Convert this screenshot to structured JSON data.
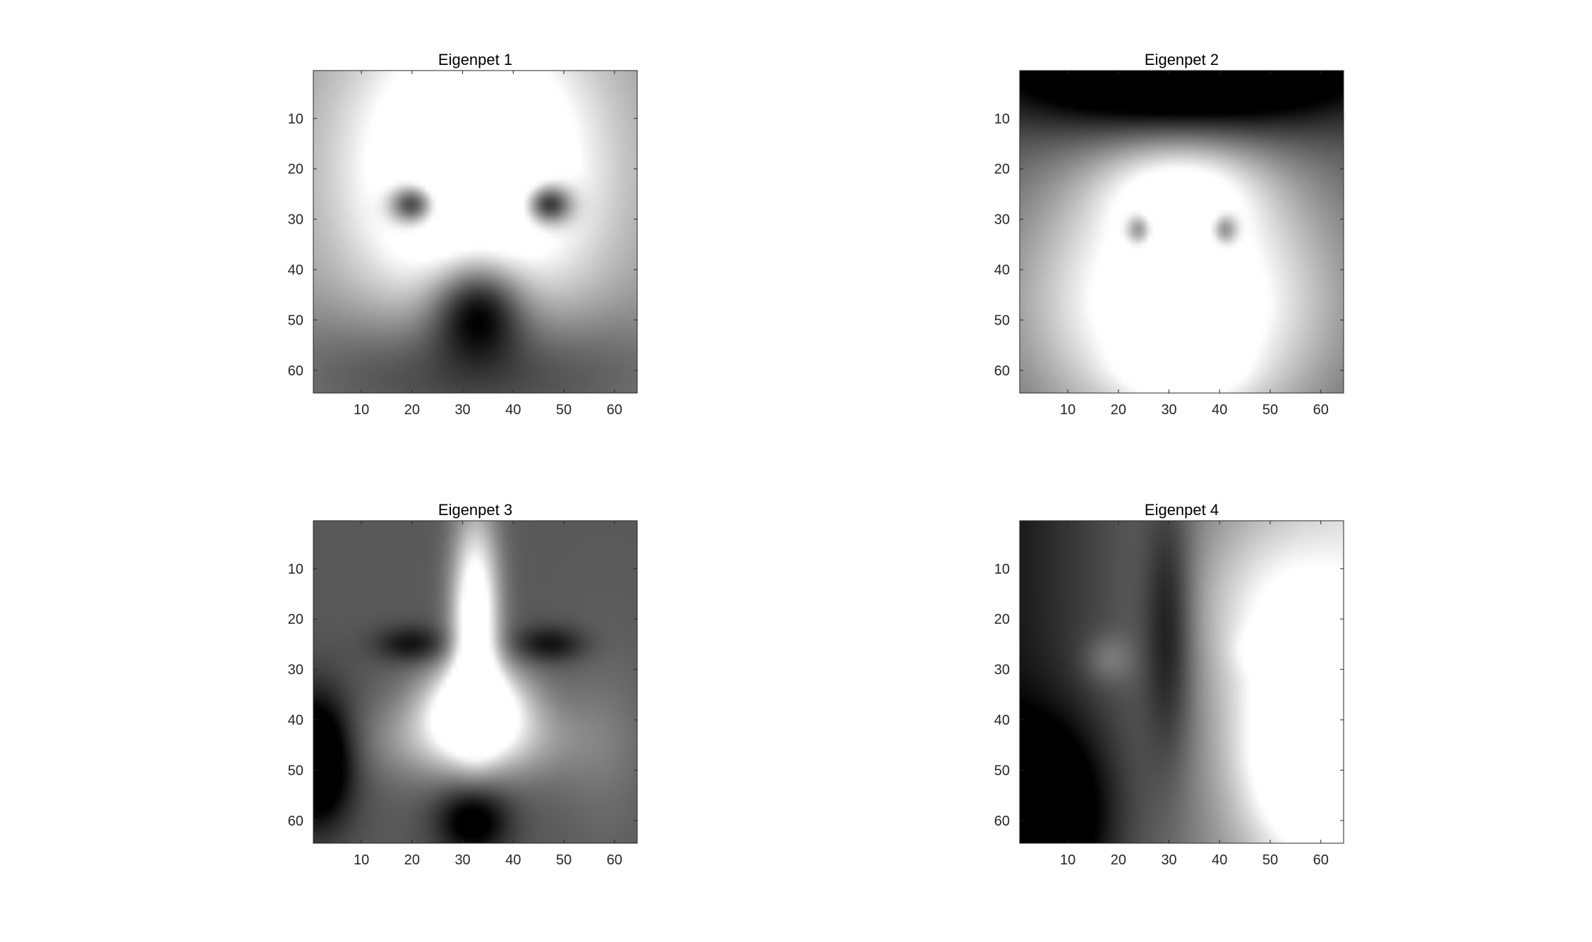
{
  "chart_data": [
    {
      "type": "heatmap",
      "title": "Eigenpet 1",
      "xlabel": "",
      "ylabel": "",
      "xlim": [
        0.5,
        64.5
      ],
      "ylim": [
        0.5,
        64.5
      ],
      "y_direction": "reversed",
      "xticks": [
        10,
        20,
        30,
        40,
        50,
        60
      ],
      "yticks": [
        10,
        20,
        30,
        40,
        50,
        60
      ],
      "colormap": "gray",
      "grid": false,
      "features": [
        {
          "x": 32,
          "y": 20,
          "sx": 18,
          "sy": 22,
          "v": 0.9
        },
        {
          "x": 20,
          "y": 27,
          "sx": 3.2,
          "sy": 2.8,
          "v": -0.92
        },
        {
          "x": 47,
          "y": 27,
          "sx": 3.2,
          "sy": 2.8,
          "v": -0.92
        },
        {
          "x": 32.5,
          "y": 15,
          "sx": 2.6,
          "sy": 9,
          "v": -0.35
        },
        {
          "x": 33,
          "y": 47,
          "sx": 6.5,
          "sy": 7,
          "v": -0.75
        },
        {
          "x": 32,
          "y": 60,
          "sx": 24,
          "sy": 9,
          "v": -0.4
        }
      ],
      "base": 0.55
    },
    {
      "type": "heatmap",
      "title": "Eigenpet 2",
      "xlabel": "",
      "ylabel": "",
      "xlim": [
        0.5,
        64.5
      ],
      "ylim": [
        0.5,
        64.5
      ],
      "y_direction": "reversed",
      "xticks": [
        10,
        20,
        30,
        40,
        50,
        60
      ],
      "yticks": [
        10,
        20,
        30,
        40,
        50,
        60
      ],
      "colormap": "gray",
      "grid": false,
      "features": [
        {
          "x": 32,
          "y": 46,
          "sx": 22,
          "sy": 20,
          "v": 0.95
        },
        {
          "x": 32,
          "y": 24,
          "sx": 11,
          "sy": 7,
          "v": 0.4
        },
        {
          "x": 33,
          "y": 1,
          "sx": 24,
          "sy": 8,
          "v": -0.85
        },
        {
          "x": 24,
          "y": 32,
          "sx": 1.8,
          "sy": 2.2,
          "v": -0.55
        },
        {
          "x": 41,
          "y": 32,
          "sx": 1.8,
          "sy": 2.2,
          "v": -0.55
        },
        {
          "x": 27,
          "y": 49,
          "sx": 4,
          "sy": 3,
          "v": 0.35
        },
        {
          "x": 40,
          "y": 49,
          "sx": 4,
          "sy": 3,
          "v": 0.35
        },
        {
          "x": 33,
          "y": 60,
          "sx": 8,
          "sy": 4,
          "v": 0.3
        }
      ],
      "base": 0.3
    },
    {
      "type": "heatmap",
      "title": "Eigenpet 3",
      "xlabel": "",
      "ylabel": "",
      "xlim": [
        0.5,
        64.5
      ],
      "ylim": [
        0.5,
        64.5
      ],
      "y_direction": "reversed",
      "xticks": [
        10,
        20,
        30,
        40,
        50,
        60
      ],
      "yticks": [
        10,
        20,
        30,
        40,
        50,
        60
      ],
      "colormap": "gray",
      "grid": false,
      "features": [
        {
          "x": 32.5,
          "y": 20,
          "sx": 3.2,
          "sy": 14,
          "v": 0.9
        },
        {
          "x": 32.5,
          "y": 37,
          "sx": 7,
          "sy": 6,
          "v": 0.85
        },
        {
          "x": 32,
          "y": 44,
          "sx": 13,
          "sy": 6,
          "v": 0.45
        },
        {
          "x": 20,
          "y": 25,
          "sx": 5,
          "sy": 2.5,
          "v": -0.3
        },
        {
          "x": 47,
          "y": 25,
          "sx": 5,
          "sy": 2.5,
          "v": -0.3
        },
        {
          "x": 1,
          "y": 48,
          "sx": 5,
          "sy": 9,
          "v": -0.7
        },
        {
          "x": 32,
          "y": 60,
          "sx": 5,
          "sy": 5,
          "v": -0.45
        },
        {
          "x": 58,
          "y": 45,
          "sx": 6,
          "sy": 14,
          "v": 0.1
        }
      ],
      "base": 0.35
    },
    {
      "type": "heatmap",
      "title": "Eigenpet 4",
      "xlabel": "",
      "ylabel": "",
      "xlim": [
        0.5,
        64.5
      ],
      "ylim": [
        0.5,
        64.5
      ],
      "y_direction": "reversed",
      "xticks": [
        10,
        20,
        30,
        40,
        50,
        60
      ],
      "yticks": [
        10,
        20,
        30,
        40,
        50,
        60
      ],
      "colormap": "gray",
      "grid": false,
      "features": [
        {
          "x": 58,
          "y": 46,
          "sx": 10,
          "sy": 14,
          "v": 0.8
        },
        {
          "x": 52,
          "y": 18,
          "sx": 12,
          "sy": 12,
          "v": 0.35
        },
        {
          "x": 5,
          "y": 58,
          "sx": 9,
          "sy": 12,
          "v": -0.55
        },
        {
          "x": 30,
          "y": 22,
          "sx": 3.5,
          "sy": 18,
          "v": -0.35
        },
        {
          "x": 18,
          "y": 28,
          "sx": 3.5,
          "sy": 3.5,
          "v": 0.18
        },
        {
          "x": 46,
          "y": 26,
          "sx": 3,
          "sy": 3,
          "v": 0.1
        }
      ],
      "base": 0.45,
      "gradient": {
        "x": 0.35
      }
    }
  ]
}
